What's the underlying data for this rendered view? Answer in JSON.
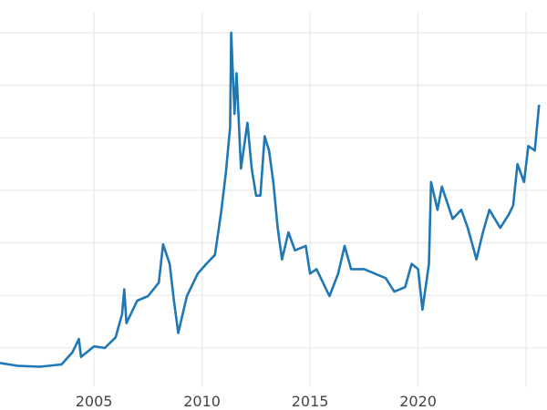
{
  "chart_data": {
    "type": "line",
    "title": "",
    "xlabel": "",
    "ylabel": "",
    "xlim": [
      2000.65,
      2025.67
    ],
    "ylim": [
      2.5,
      51
    ],
    "grid": true,
    "x_ticks": [
      2005,
      2010,
      2015,
      2020,
      2025
    ],
    "x_tick_labels": [
      "2005",
      "2010",
      "2015",
      "2020",
      ""
    ],
    "y_gridlines": [
      6.5,
      13.5,
      20.5,
      27.5,
      34.5,
      41.5,
      48.5
    ],
    "color": "#1f77b4",
    "series": [
      {
        "x": [
          2000.65,
          2001.5,
          2002.5,
          2003.5,
          2004.0,
          2004.3,
          2004.4,
          2005.0,
          2005.5,
          2006.0,
          2006.3,
          2006.4,
          2006.5,
          2007.0,
          2007.5,
          2008.0,
          2008.2,
          2008.5,
          2008.7,
          2008.9,
          2009.3,
          2009.8,
          2010.2,
          2010.6,
          2010.9,
          2011.1,
          2011.3,
          2011.35,
          2011.5,
          2011.6,
          2011.8,
          2012.1,
          2012.3,
          2012.5,
          2012.7,
          2012.9,
          2013.1,
          2013.3,
          2013.5,
          2013.7,
          2014.0,
          2014.3,
          2014.8,
          2015.0,
          2015.3,
          2015.9,
          2016.3,
          2016.6,
          2016.9,
          2017.5,
          2018.0,
          2018.5,
          2018.9,
          2019.4,
          2019.7,
          2020.0,
          2020.2,
          2020.5,
          2020.6,
          2020.9,
          2021.1,
          2021.6,
          2022.0,
          2022.3,
          2022.7,
          2023.0,
          2023.3,
          2023.8,
          2024.2,
          2024.4,
          2024.6,
          2024.9,
          2025.1,
          2025.4,
          2025.6
        ],
        "y": [
          4.5,
          4.1,
          4.0,
          4.3,
          5.9,
          7.7,
          5.3,
          6.7,
          6.5,
          7.9,
          11.0,
          14.3,
          9.8,
          12.8,
          13.4,
          15.2,
          20.3,
          17.7,
          12.8,
          8.5,
          13.4,
          16.4,
          17.7,
          18.9,
          24.9,
          29.8,
          35.9,
          48.5,
          37.7,
          43.1,
          30.4,
          36.5,
          30.4,
          26.8,
          26.8,
          34.7,
          32.8,
          28.6,
          22.5,
          18.3,
          21.9,
          19.5,
          20.1,
          16.4,
          17.0,
          13.4,
          16.4,
          20.1,
          17.0,
          17.0,
          16.4,
          15.8,
          14.0,
          14.6,
          17.7,
          17.0,
          11.6,
          17.7,
          28.6,
          24.9,
          28.0,
          23.7,
          24.9,
          22.5,
          18.3,
          21.9,
          24.9,
          22.5,
          24.3,
          25.5,
          31.0,
          28.6,
          33.4,
          32.8,
          38.9
        ]
      }
    ]
  }
}
